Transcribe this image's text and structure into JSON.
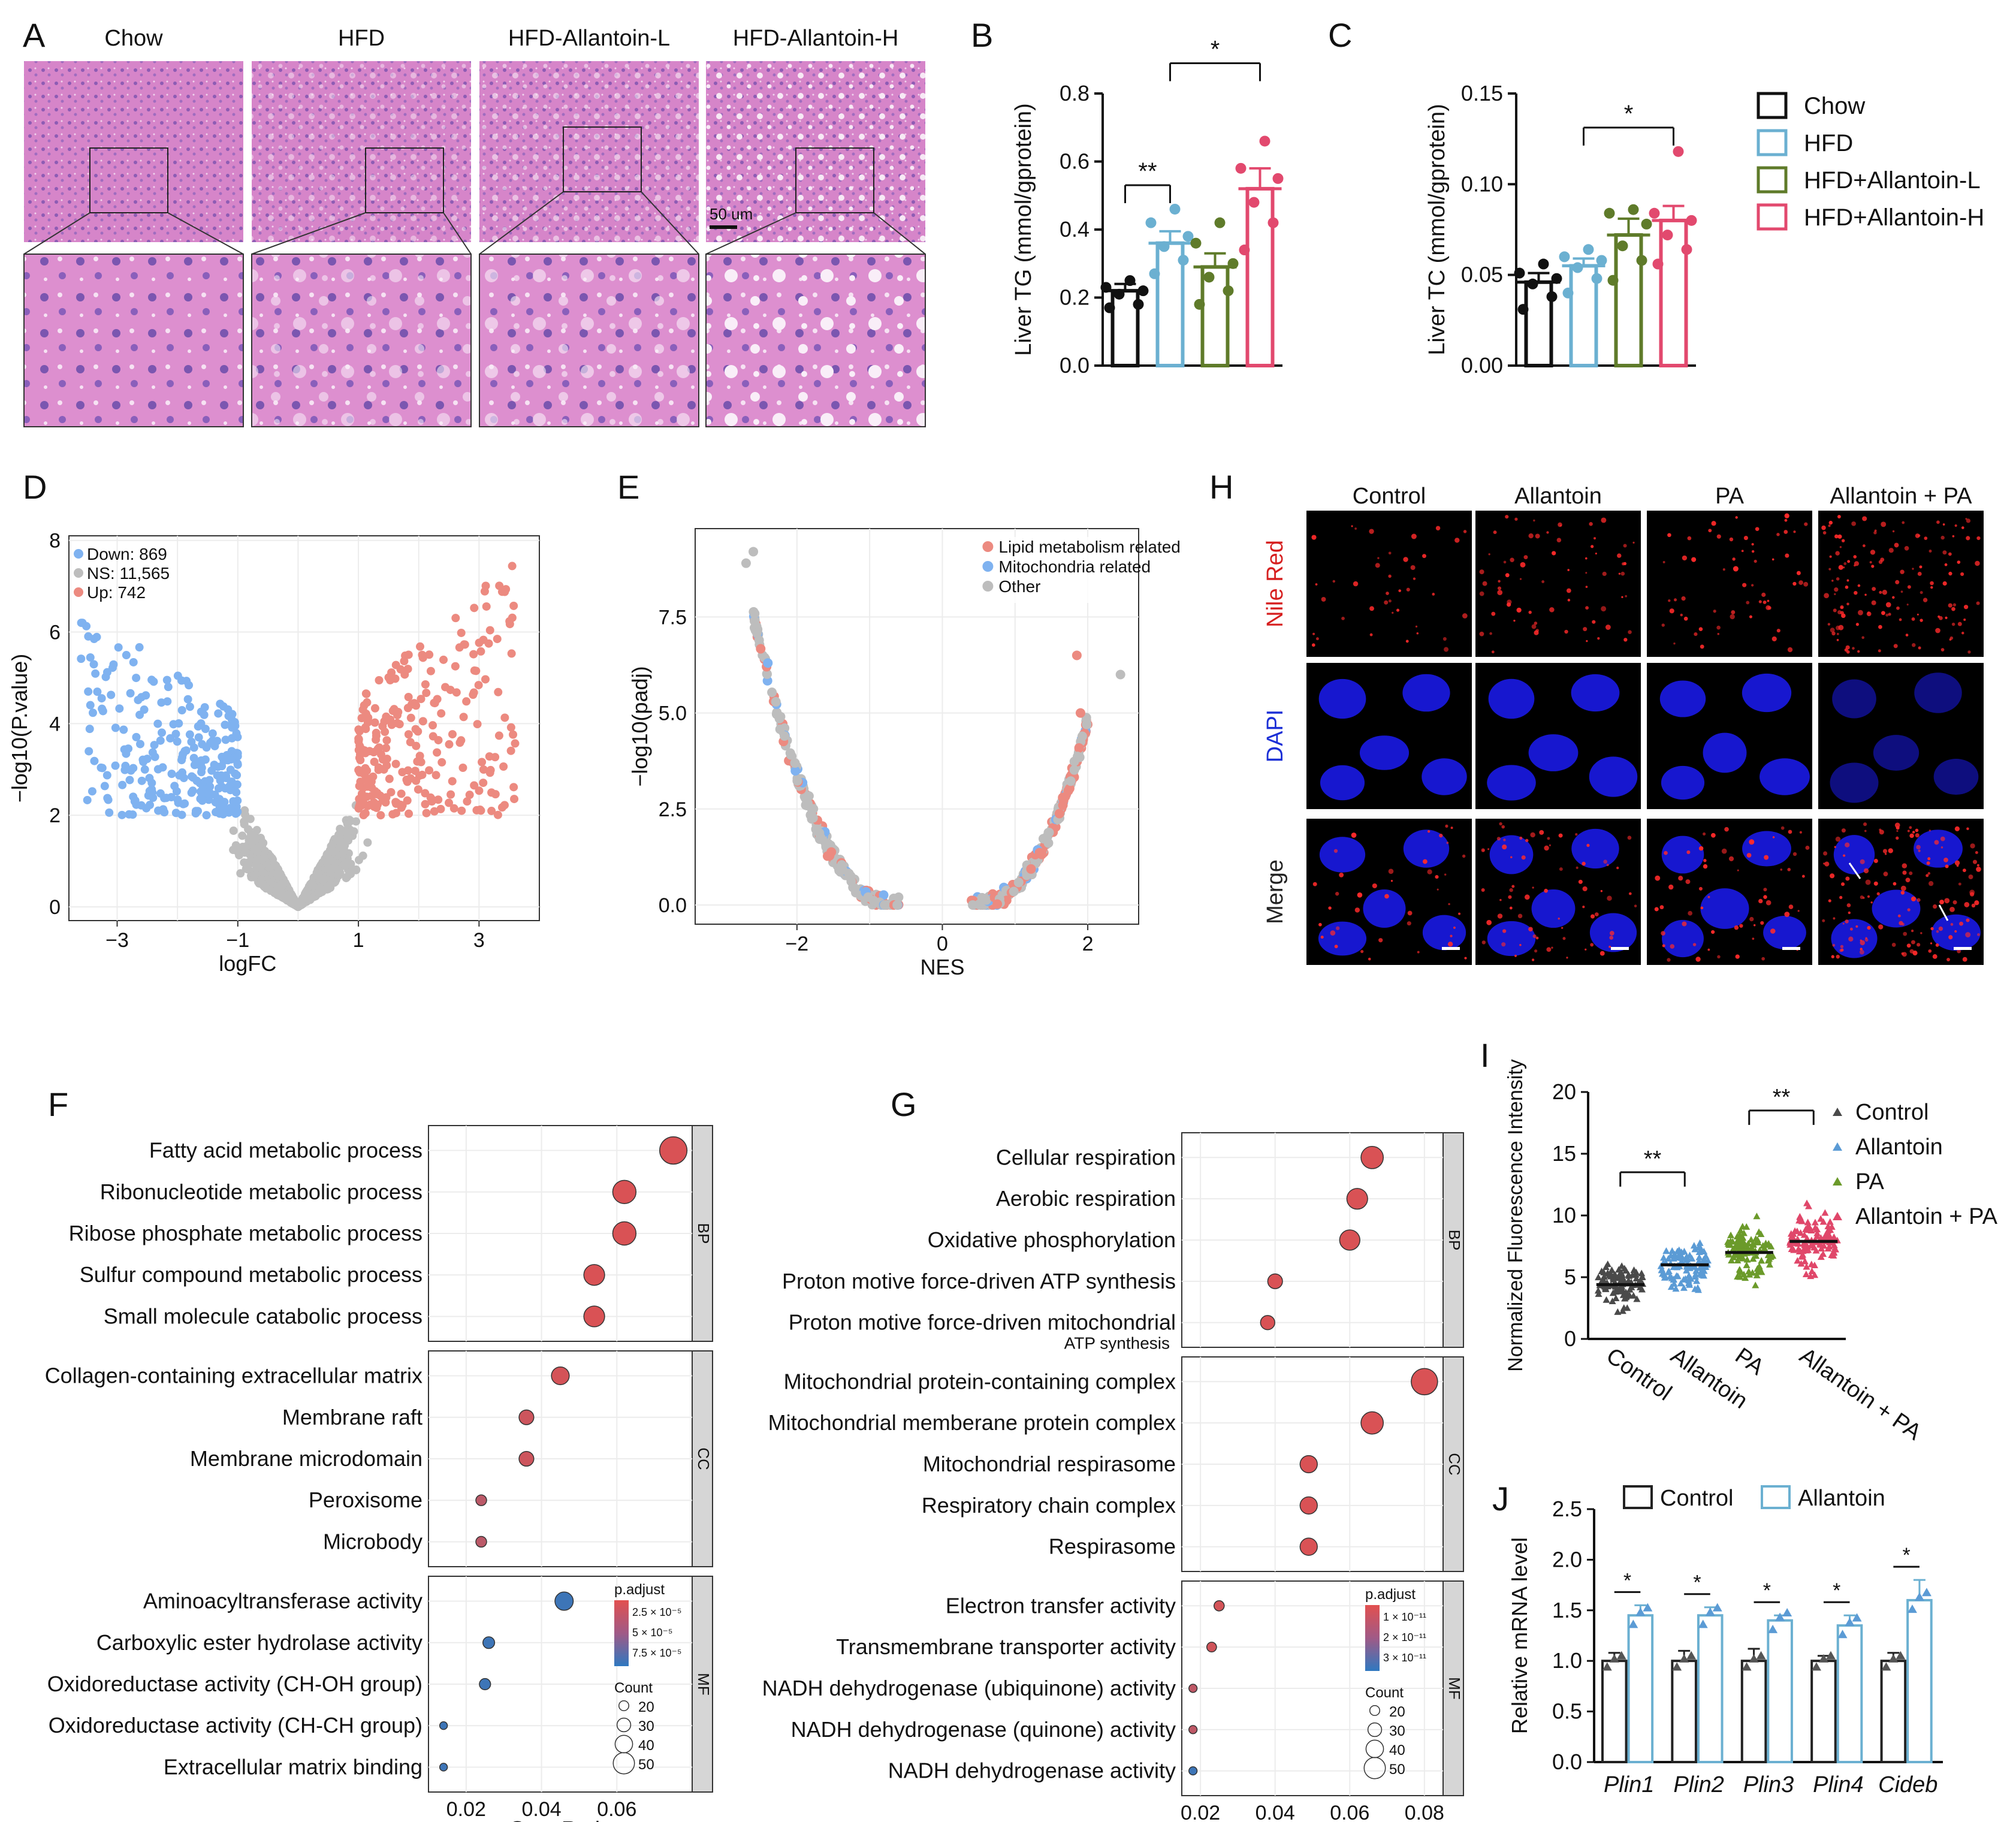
{
  "panel_letters": [
    "A",
    "B",
    "C",
    "D",
    "E",
    "F",
    "G",
    "H",
    "I",
    "J"
  ],
  "panelA": {
    "groups": [
      "Chow",
      "HFD",
      "HFD-Allantoin-L",
      "HFD-Allantoin-H"
    ],
    "scale_bar": "50 um"
  },
  "legend_BC": {
    "entries": [
      {
        "name": "Chow",
        "color": "#111111"
      },
      {
        "name": "HFD",
        "color": "#6bb0d1"
      },
      {
        "name": "HFD+Allantoin-L",
        "color": "#5f7b2a"
      },
      {
        "name": "HFD+Allantoin-H",
        "color": "#e2496e"
      }
    ]
  },
  "panelH": {
    "columns": [
      "Control",
      "Allantoin",
      "PA",
      "Allantoin + PA"
    ],
    "rows": [
      "Nile Red",
      "DAPI",
      "Merge"
    ],
    "row_colors": [
      "#d61f1f",
      "#1b2fd6",
      "#222222"
    ]
  },
  "chart_data": [
    {
      "id": "B",
      "type": "bar",
      "categories": [
        "Chow",
        "HFD",
        "HFD+Allantoin-L",
        "HFD+Allantoin-H"
      ],
      "values": [
        0.22,
        0.36,
        0.29,
        0.52
      ],
      "errors": [
        0.02,
        0.035,
        0.04,
        0.06
      ],
      "points": [
        [
          0.17,
          0.18,
          0.21,
          0.22,
          0.23,
          0.25
        ],
        [
          0.27,
          0.31,
          0.35,
          0.38,
          0.42,
          0.46
        ],
        [
          0.18,
          0.22,
          0.26,
          0.3,
          0.36,
          0.42
        ],
        [
          0.34,
          0.42,
          0.48,
          0.55,
          0.58,
          0.66
        ]
      ],
      "colors": [
        "#111111",
        "#6bb0d1",
        "#5f7b2a",
        "#e2496e"
      ],
      "ylabel": "Liver TG (mmol/gprotein)",
      "ylim": [
        0,
        0.8
      ],
      "yticks": [
        "0.0",
        "0.2",
        "0.4",
        "0.6",
        "0.8"
      ],
      "brackets": [
        {
          "from": 0,
          "to": 1,
          "label": "**"
        },
        {
          "from": 1,
          "to": 3,
          "label": "*"
        }
      ]
    },
    {
      "id": "C",
      "type": "bar",
      "categories": [
        "Chow",
        "HFD",
        "HFD+Allantoin-L",
        "HFD+Allantoin-H"
      ],
      "values": [
        0.046,
        0.055,
        0.072,
        0.08
      ],
      "errors": [
        0.005,
        0.004,
        0.009,
        0.008
      ],
      "points": [
        [
          0.031,
          0.038,
          0.045,
          0.048,
          0.051,
          0.056
        ],
        [
          0.04,
          0.048,
          0.054,
          0.058,
          0.06,
          0.064
        ],
        [
          0.047,
          0.058,
          0.066,
          0.078,
          0.084,
          0.086
        ],
        [
          0.056,
          0.064,
          0.072,
          0.08,
          0.084,
          0.118
        ]
      ],
      "colors": [
        "#111111",
        "#6bb0d1",
        "#5f7b2a",
        "#e2496e"
      ],
      "ylabel": "Liver TC (mmol/gprotein)",
      "ylim": [
        0,
        0.15
      ],
      "yticks": [
        "0.00",
        "0.05",
        "0.10",
        "0.15"
      ],
      "brackets": [
        {
          "from": 1,
          "to": 3,
          "label": "*"
        }
      ]
    },
    {
      "id": "D",
      "type": "scatter",
      "legend": [
        "Down: 869",
        "NS: 11,565",
        "Up: 742"
      ],
      "legend_colors": [
        "#7fb2f0",
        "#bdbdbd",
        "#ec8a80"
      ],
      "xlabel": "logFC",
      "ylabel": "−log10(P.value)",
      "xlim": [
        -3.8,
        4
      ],
      "ylim": [
        -0.3,
        8.1
      ],
      "xticks": [
        "−3",
        "−1",
        "1",
        "3"
      ],
      "yticks": [
        "0",
        "2",
        "4",
        "6",
        "8"
      ],
      "counts": {
        "down": 869,
        "ns": 11565,
        "up": 742
      }
    },
    {
      "id": "E",
      "type": "scatter",
      "legend": [
        "Lipid metabolism related",
        "Mitochondria related",
        "Other"
      ],
      "legend_colors": [
        "#ec8a80",
        "#7fb2f0",
        "#bdbdbd"
      ],
      "xlabel": "NES",
      "ylabel": "−log10(padj)",
      "xlim": [
        -3.4,
        2.7
      ],
      "ylim": [
        -0.5,
        9.8
      ],
      "xticks": [
        "−2",
        "0",
        "2"
      ],
      "yticks": [
        "0.0",
        "2.5",
        "5.0",
        "7.5"
      ]
    },
    {
      "id": "F",
      "type": "dotplot",
      "xlabel": "GeneRatio",
      "xticks": [
        "0.02",
        "0.04",
        "0.06"
      ],
      "xlim": [
        0.01,
        0.08
      ],
      "groups": [
        {
          "label": "BP",
          "terms": [
            "Fatty acid metabolic process",
            "Ribonucleotide metabolic process",
            "Ribose phosphate metabolic process",
            "Sulfur compound metabolic process",
            "Small molecule catabolic process"
          ],
          "x": [
            0.075,
            0.062,
            0.062,
            0.054,
            0.054
          ],
          "count": [
            48,
            40,
            40,
            35,
            35
          ],
          "color_t": [
            0.05,
            0.05,
            0.05,
            0.05,
            0.05
          ]
        },
        {
          "label": "CC",
          "terms": [
            "Collagen-containing extracellular matrix",
            "Membrane raft",
            "Membrane microdomain",
            "Peroxisome",
            "Microbody"
          ],
          "x": [
            0.045,
            0.036,
            0.036,
            0.024,
            0.024
          ],
          "count": [
            29,
            23,
            23,
            15,
            15
          ],
          "color_t": [
            0.08,
            0.12,
            0.12,
            0.22,
            0.22
          ]
        },
        {
          "label": "MF",
          "terms": [
            "Aminoacyltransferase activity",
            "Carboxylic ester hydrolase activity",
            "Oxidoreductase activity (CH-OH group)",
            "Oxidoreductase activity (CH-CH group)",
            "Extracellular matrix binding"
          ],
          "x": [
            0.046,
            0.026,
            0.025,
            0.014,
            0.014
          ],
          "count": [
            30,
            17,
            16,
            9,
            9
          ],
          "color_t": [
            0.92,
            0.92,
            0.92,
            0.92,
            0.92
          ]
        }
      ],
      "legend_title": "p.adjust",
      "legend_ticks": [
        "2.5 × 10⁻⁵",
        "5 × 10⁻⁵",
        "7.5 × 10⁻⁵"
      ],
      "count_title": "Count",
      "count_values": [
        "20",
        "30",
        "40",
        "50"
      ]
    },
    {
      "id": "G",
      "type": "dotplot",
      "xlabel": "GeneRatio",
      "xticks": [
        "0.02",
        "0.04",
        "0.06",
        "0.08"
      ],
      "xlim": [
        0.015,
        0.085
      ],
      "groups": [
        {
          "label": "BP",
          "terms": [
            "Cellular respiration",
            "Aerobic respiration",
            "Oxidative phosphorylation",
            "Proton motive force-driven ATP synthesis",
            "Proton motive force-driven mitochondrial"
          ],
          "sub": "ATP synthesis",
          "x": [
            0.066,
            0.062,
            0.06,
            0.04,
            0.038
          ],
          "count": [
            38,
            35,
            34,
            23,
            22
          ],
          "color_t": [
            0.05,
            0.05,
            0.05,
            0.05,
            0.05
          ]
        },
        {
          "label": "CC",
          "terms": [
            "Mitochondrial protein-containing complex",
            "Mitochondrial memberane protein complex",
            "Mitochondrial respirasome",
            "Respiratory chain complex",
            "Respirasome"
          ],
          "x": [
            0.08,
            0.066,
            0.049,
            0.049,
            0.049
          ],
          "count": [
            46,
            38,
            28,
            28,
            28
          ],
          "color_t": [
            0.05,
            0.05,
            0.05,
            0.05,
            0.05
          ]
        },
        {
          "label": "MF",
          "terms": [
            "Electron transfer activity",
            "Transmembrane transporter activity",
            "NADH dehydrogenase (ubiquinone) activity",
            "NADH dehydrogenase (quinone) activity",
            "NADH dehydrogenase activity"
          ],
          "x": [
            0.025,
            0.023,
            0.018,
            0.018,
            0.018
          ],
          "count": [
            14,
            13,
            10,
            10,
            10
          ],
          "color_t": [
            0.08,
            0.1,
            0.2,
            0.2,
            0.92
          ]
        }
      ],
      "legend_title": "p.adjust",
      "legend_ticks": [
        "1 × 10⁻¹¹",
        "2 × 10⁻¹¹",
        "3 × 10⁻¹¹"
      ],
      "count_title": "Count",
      "count_values": [
        "20",
        "30",
        "40",
        "50"
      ]
    },
    {
      "id": "I",
      "type": "scatter",
      "categories": [
        "Control",
        "Allantoin",
        "PA",
        "Allantoin + PA"
      ],
      "medians": [
        4.4,
        6.0,
        7.0,
        7.9
      ],
      "colors": [
        "#4a4a4a",
        "#5b9bd5",
        "#6b9a2a",
        "#e0476a"
      ],
      "ylabel": "Normalized Fluorescence Intensity",
      "ylim": [
        0,
        20
      ],
      "yticks": [
        "0",
        "5",
        "10",
        "15",
        "20"
      ],
      "brackets": [
        {
          "from": 0,
          "to": 1,
          "label": "**"
        },
        {
          "from": 2,
          "to": 3,
          "label": "**"
        }
      ]
    },
    {
      "id": "J",
      "type": "bar",
      "categories": [
        "Plin1",
        "Plin2",
        "Plin3",
        "Plin4",
        "Cideb"
      ],
      "series": [
        {
          "name": "Control",
          "values": [
            1.0,
            1.0,
            1.0,
            1.0,
            1.0
          ],
          "errors": [
            0.08,
            0.1,
            0.12,
            0.05,
            0.08
          ],
          "color": "#222222"
        },
        {
          "name": "Allantoin",
          "values": [
            1.45,
            1.45,
            1.4,
            1.35,
            1.6
          ],
          "errors": [
            0.1,
            0.08,
            0.05,
            0.1,
            0.2
          ],
          "color": "#6bb0d1"
        }
      ],
      "ylabel": "Relative mRNA level",
      "ylim": [
        0,
        2.5
      ],
      "yticks": [
        "0.0",
        "0.5",
        "1.0",
        "1.5",
        "2.0",
        "2.5"
      ],
      "sig": [
        "*",
        "*",
        "*",
        "*",
        "*"
      ]
    }
  ]
}
